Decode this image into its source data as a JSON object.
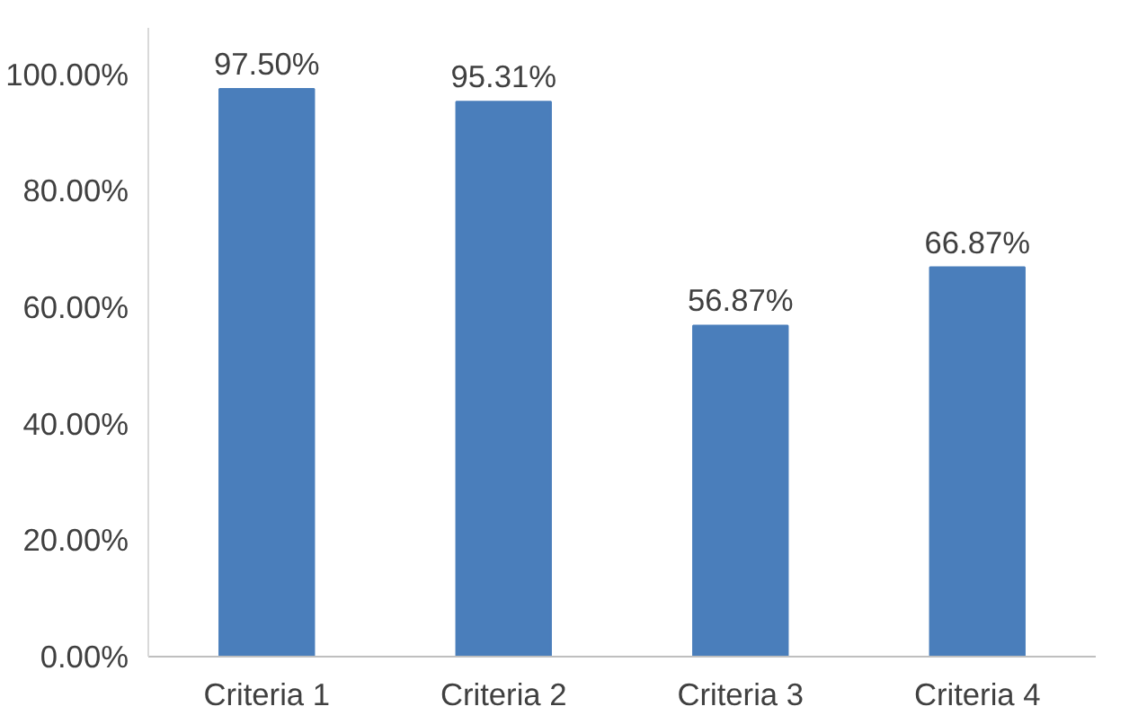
{
  "chart_data": {
    "type": "bar",
    "categories": [
      "Criteria 1",
      "Criteria 2",
      "Criteria 3",
      "Criteria 4"
    ],
    "values": [
      97.5,
      95.31,
      56.87,
      66.87
    ],
    "value_labels": [
      "97.50%",
      "95.31%",
      "56.87%",
      "66.87%"
    ],
    "color": "#4a7ebb",
    "ylim": [
      0,
      108
    ],
    "yticks": [
      {
        "value": 0,
        "label": "0.00%"
      },
      {
        "value": 20,
        "label": "20.00%"
      },
      {
        "value": 40,
        "label": "40.00%"
      },
      {
        "value": 60,
        "label": "60.00%"
      },
      {
        "value": 80,
        "label": "80.00%"
      },
      {
        "value": 100,
        "label": "100.00%"
      }
    ],
    "grid": false
  }
}
